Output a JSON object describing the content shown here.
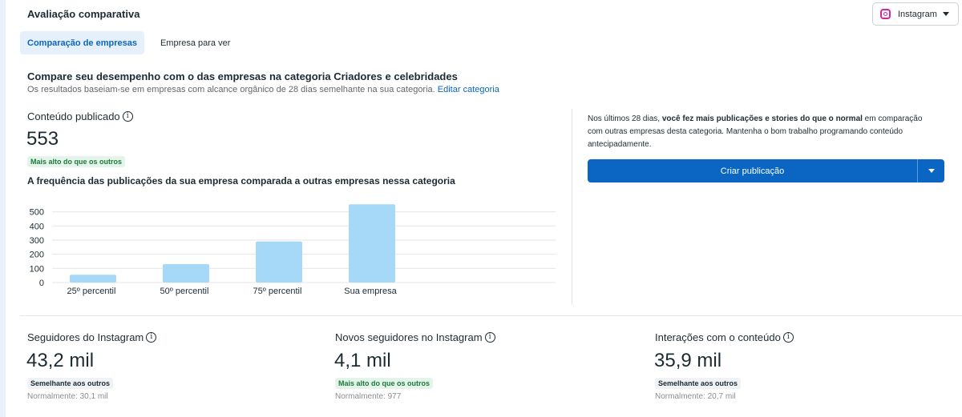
{
  "header": {
    "title": "Avaliação comparativa"
  },
  "platform_select": {
    "value": "Instagram",
    "icon": "instagram-icon"
  },
  "tabs": [
    {
      "label": "Comparação de empresas",
      "active": true
    },
    {
      "label": "Empresa para ver",
      "active": false
    }
  ],
  "section": {
    "title": "Compare seu desempenho com o das empresas na categoria Criadores e celebridades",
    "subtitle": "Os resultados baseiam-se em empresas com alcance orgânico de 28 dias semelhante na sua categoria.",
    "edit_link": "Editar categoria"
  },
  "content_published": {
    "label": "Conteúdo publicado",
    "value": "553",
    "badge": "Mais alto do que os outros"
  },
  "chart_data": {
    "type": "bar",
    "title": "A frequência das publicações da sua empresa comparada a outras empresas nessa categoria",
    "categories": [
      "25º percentil",
      "50º percentil",
      "75º percentil",
      "Sua empresa"
    ],
    "values": [
      55,
      130,
      290,
      553
    ],
    "yticks": [
      0,
      100,
      200,
      300,
      400,
      500
    ],
    "ylim": [
      0,
      560
    ],
    "bar_color": "#a6d8f7",
    "grid": true
  },
  "insight": {
    "prefix": "Nos últimos 28 dias, ",
    "bold": "você fez mais publicações e stories do que o normal",
    "suffix": " em comparação com outras empresas desta categoria. Mantenha o bom trabalho programando conteúdo antecipadamente.",
    "cta_label": "Criar publicação"
  },
  "metrics": [
    {
      "label": "Seguidores do Instagram",
      "value": "43,2 mil",
      "badge": "Semelhante aos outros",
      "badge_type": "neutral",
      "normal": "Normalmente: 30,1 mil"
    },
    {
      "label": "Novos seguidores no Instagram",
      "value": "4,1 mil",
      "badge": "Mais alto do que os outros",
      "badge_type": "green",
      "normal": "Normalmente: 977"
    },
    {
      "label": "Interações com o conteúdo",
      "value": "35,9 mil",
      "badge": "Semelhante aos outros",
      "badge_type": "neutral",
      "normal": "Normalmente: 20,7 mil"
    }
  ]
}
